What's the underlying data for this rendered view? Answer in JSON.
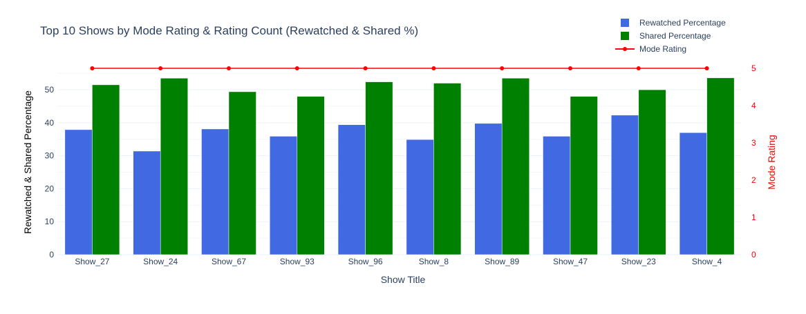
{
  "chart_data": {
    "type": "bar",
    "title": "Top 10 Shows by Mode Rating & Rating Count (Rewatched & Shared %)",
    "xlabel": "Show Title",
    "ylabel": "Rewatched & Shared Percentage",
    "y2label": "Mode Rating",
    "categories": [
      "Show_27",
      "Show_24",
      "Show_67",
      "Show_93",
      "Show_96",
      "Show_8",
      "Show_89",
      "Show_47",
      "Show_23",
      "Show_4"
    ],
    "ylim": [
      0,
      56.5
    ],
    "yticks": [
      0,
      10,
      20,
      30,
      40,
      50
    ],
    "y2lim": [
      0,
      5
    ],
    "y2ticks": [
      0,
      1,
      2,
      3,
      4,
      5
    ],
    "grid": true,
    "legend_position": "top-right",
    "series": [
      {
        "name": "Rewatched Percentage",
        "type": "bar",
        "axis": "y",
        "color": "#4169E1",
        "values": [
          37.9,
          31.4,
          38.1,
          35.9,
          39.4,
          34.9,
          39.8,
          35.9,
          42.3,
          37.0
        ]
      },
      {
        "name": "Shared Percentage",
        "type": "bar",
        "axis": "y",
        "color": "#008000",
        "values": [
          51.5,
          53.5,
          49.4,
          48.0,
          52.4,
          52.0,
          53.5,
          48.0,
          50.0,
          53.6
        ]
      },
      {
        "name": "Mode Rating",
        "type": "line",
        "axis": "y2",
        "color": "#FF0000",
        "values": [
          5,
          5,
          5,
          5,
          5,
          5,
          5,
          5,
          5,
          5
        ]
      }
    ],
    "colors": {
      "title": "#2a3f5f",
      "axis_text": "#2a3f5f",
      "y2_text": "#FF0000",
      "grid": "#ebf0f8"
    }
  }
}
